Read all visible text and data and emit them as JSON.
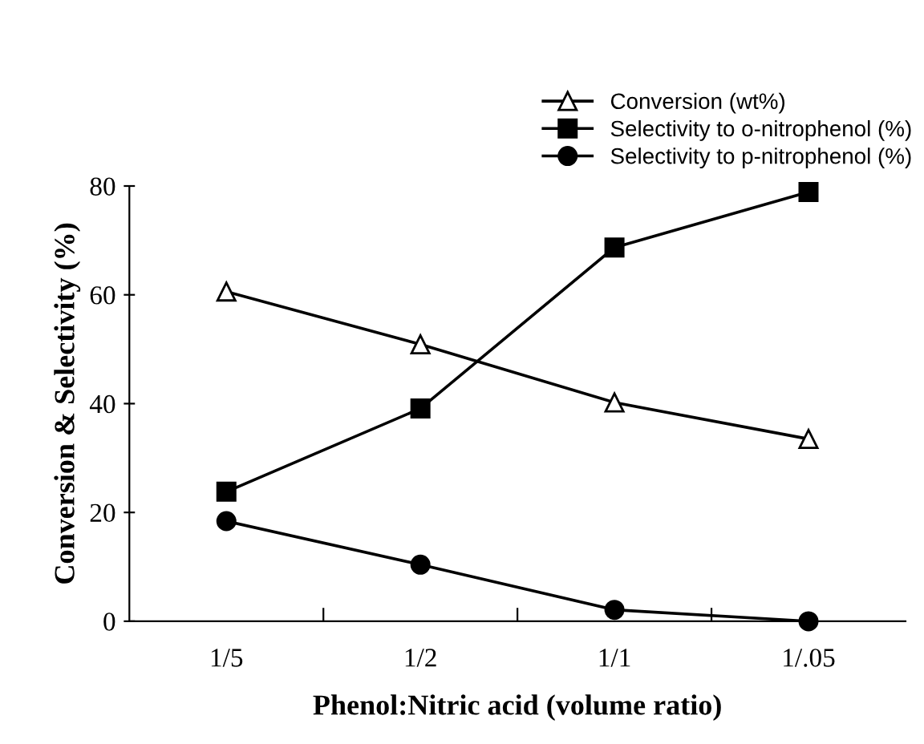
{
  "chart_data": {
    "type": "line",
    "xlabel": "Phenol:Nitric acid (volume ratio)",
    "ylabel": "Conversion & Selectivity (%)",
    "categories": [
      "1/5",
      "1/2",
      "1/1",
      "1/.05"
    ],
    "series": [
      {
        "name": "Conversion (wt%)",
        "color": "#000000",
        "values": [
          60.6,
          50.9,
          40.2,
          33.5
        ],
        "marker": "triangle"
      },
      {
        "name": "Selectivity to o-nitrophenol (%)",
        "color": "#000000",
        "values": [
          23.8,
          39.1,
          68.7,
          78.9
        ],
        "marker": "square"
      },
      {
        "name": "Selectivity to p-nitrophenol (%)",
        "color": "#000000",
        "values": [
          18.4,
          10.4,
          2.1,
          0
        ],
        "marker": "circle"
      }
    ],
    "ylim": [
      0,
      80
    ],
    "yticks": [
      0,
      20,
      40,
      60,
      80
    ],
    "grid": false,
    "legend": "top right",
    "line_style": "solid"
  }
}
